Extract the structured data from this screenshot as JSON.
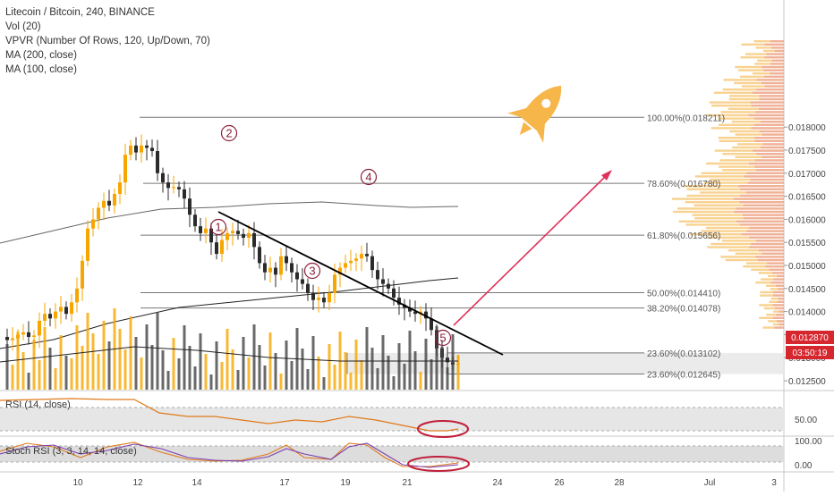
{
  "legend": {
    "title": "Litecoin / Bitcoin, 240, BINANCE",
    "indicators": [
      "Vol (20)",
      "VPVR (Number Of Rows, 120, Up/Down, 70)",
      "MA (200, close)",
      "MA (100, close)"
    ]
  },
  "panes": {
    "rsi_label": "RSI (14, close)",
    "stoch_label": "Stoch RSI (3, 3, 14, 14, close)"
  },
  "price_badges": {
    "last_price": "0.012870",
    "countdown": "03:50:19"
  },
  "colors": {
    "up": "#f7a600",
    "down": "#2b2b2b",
    "fib_line": "#777777",
    "arrow": "#e0315a",
    "rocket": "#f7b64a",
    "annotation_circle": "#c0203a",
    "wave_label": "#8b1e3a"
  },
  "chart_data": {
    "type": "candlestick",
    "y_axis": {
      "ticks": [
        "0.012500",
        "0.013000",
        "0.013500",
        "0.014000",
        "0.014500",
        "0.015000",
        "0.015500",
        "0.016000",
        "0.016500",
        "0.017000",
        "0.017500",
        "0.018000"
      ],
      "ylim": [
        0.0121,
        0.0184
      ]
    },
    "x_axis": {
      "ticks": [
        "10",
        "12",
        "14",
        "17",
        "19",
        "21",
        "24",
        "26",
        "28",
        "Jul",
        "3"
      ]
    },
    "fib_levels": [
      {
        "label": "100.00%(0.018211)",
        "price": 0.018211
      },
      {
        "label": "78.60%(0.016780)",
        "price": 0.01678
      },
      {
        "label": "61.80%(0.015656)",
        "price": 0.015656
      },
      {
        "label": "50.00%(0.014410)",
        "price": 0.01441
      },
      {
        "label": "38.20%(0.014078)",
        "price": 0.014078
      },
      {
        "label": "23.60%(0.013102)",
        "price": 0.013102
      },
      {
        "label": "23.60%(0.012645)",
        "price": 0.012645
      }
    ],
    "wave_labels": [
      "1",
      "2",
      "3",
      "4",
      "5"
    ],
    "rsi_ticks": [
      "50.00"
    ],
    "stoch_ticks": [
      "100.00",
      "0.00"
    ]
  }
}
